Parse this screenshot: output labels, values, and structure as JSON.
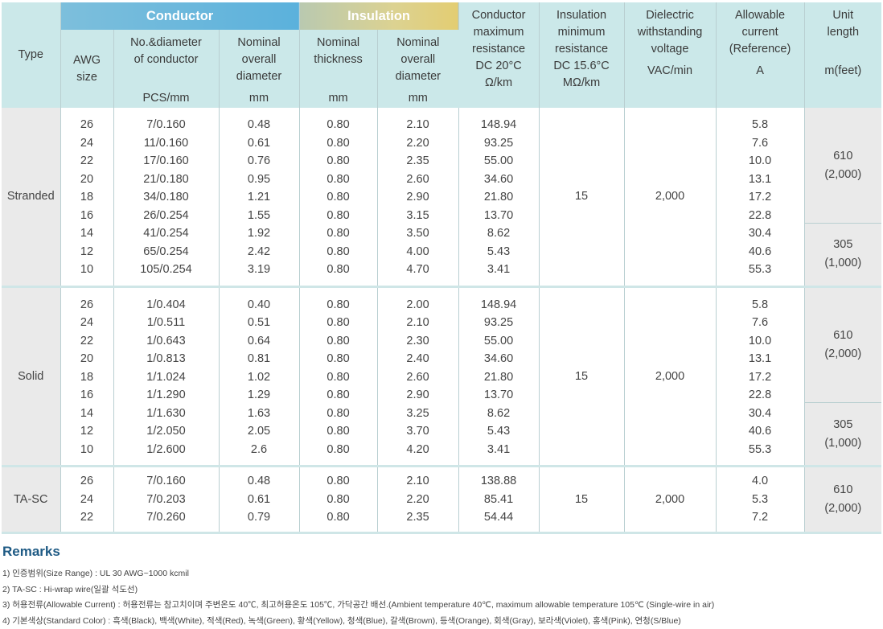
{
  "header": {
    "type": "Type",
    "conductor_group": "Conductor",
    "insulation_group": "Insulation",
    "awg": "AWG\nsize",
    "no_diameter": "No.&diameter\nof conductor",
    "no_diameter_unit": "PCS/mm",
    "cond_overall": "Nominal\noverall\ndiameter",
    "cond_overall_unit": "mm",
    "ins_thickness": "Nominal\nthickness",
    "ins_thickness_unit": "mm",
    "ins_overall": "Nominal\noverall\ndiameter",
    "ins_overall_unit": "mm",
    "max_resistance": "Conductor\nmaximum\nresistance\nDC 20°C",
    "max_resistance_unit": "Ω/km",
    "ins_resistance": "Insulation\nminimum\nresistance\nDC 15.6°C",
    "ins_resistance_unit": "MΩ/km",
    "dielectric": "Dielectric\nwithstanding\nvoltage",
    "dielectric_unit": "VAC/min",
    "current": "Allowable\ncurrent\n(Reference)",
    "current_unit": "A",
    "length": "Unit\nlength",
    "length_unit": "m(feet)"
  },
  "groups": [
    {
      "type": "Stranded",
      "awg": "26\n24\n22\n20\n18\n16\n14\n12\n10",
      "no_diameter": "7/0.160\n11/0.160\n17/0.160\n21/0.180\n34/0.180\n26/0.254\n41/0.254\n65/0.254\n105/0.254",
      "cond_overall": "0.48\n0.61\n0.76\n0.95\n1.21\n1.55\n1.92\n2.42\n3.19",
      "ins_thickness": "0.80\n0.80\n0.80\n0.80\n0.80\n0.80\n0.80\n0.80\n0.80",
      "ins_overall": "2.10\n2.20\n2.35\n2.60\n2.90\n3.15\n3.50\n4.00\n4.70",
      "max_resistance": "148.94\n93.25\n55.00\n34.60\n21.80\n13.70\n8.62\n5.43\n3.41",
      "ins_resistance": "15",
      "dielectric": "2,000",
      "current": "5.8\n7.6\n10.0\n13.1\n17.2\n22.8\n30.4\n40.6\n55.3",
      "length_a": "610\n(2,000)",
      "length_b": "305\n(1,000)"
    },
    {
      "type": "Solid",
      "awg": "26\n24\n22\n20\n18\n16\n14\n12\n10",
      "no_diameter": "1/0.404\n1/0.511\n1/0.643\n1/0.813\n1/1.024\n1/1.290\n1/1.630\n1/2.050\n1/2.600",
      "cond_overall": "0.40\n0.51\n0.64\n0.81\n1.02\n1.29\n1.63\n2.05\n2.6",
      "ins_thickness": "0.80\n0.80\n0.80\n0.80\n0.80\n0.80\n0.80\n0.80\n0.80",
      "ins_overall": "2.00\n2.10\n2.30\n2.40\n2.60\n2.90\n3.25\n3.70\n4.20",
      "max_resistance": "148.94\n93.25\n55.00\n34.60\n21.80\n13.70\n8.62\n5.43\n3.41",
      "ins_resistance": "15",
      "dielectric": "2,000",
      "current": "5.8\n7.6\n10.0\n13.1\n17.2\n22.8\n30.4\n40.6\n55.3",
      "length_a": "610\n(2,000)",
      "length_b": "305\n(1,000)"
    },
    {
      "type": "TA-SC",
      "awg": "26\n24\n22",
      "no_diameter": "7/0.160\n7/0.203\n7/0.260",
      "cond_overall": "0.48\n0.61\n0.79",
      "ins_thickness": "0.80\n0.80\n0.80",
      "ins_overall": "2.10\n2.20\n2.35",
      "max_resistance": "138.88\n85.41\n54.44",
      "ins_resistance": "15",
      "dielectric": "2,000",
      "current": "4.0\n5.3\n7.2",
      "length_a": "610\n(2,000)"
    }
  ],
  "remarks": {
    "title": "Remarks",
    "items": [
      "1) 인증범위(Size Range) : UL 30 AWG~1000 kcmil",
      "2) TA-SC : Hi-wrap wire(일괄 석도선)",
      "3) 허용전류(Allowable Current) : 허용전류는 참고치이며 주변온도 40℃, 최고허용온도 105℃, 가닥공간 배선.(Ambient temperature 40℃, maximum allowable temperature 105℃ (Single-wire in air)",
      "4) 기본색상(Standard Color) : 흑색(Black), 백색(White), 적색(Red), 녹색(Green), 황색(Yellow), 청색(Blue), 갈색(Brown), 등색(Orange), 회색(Gray), 보라색(Violet), 홍색(Pink), 연청(S/Blue)"
    ]
  }
}
